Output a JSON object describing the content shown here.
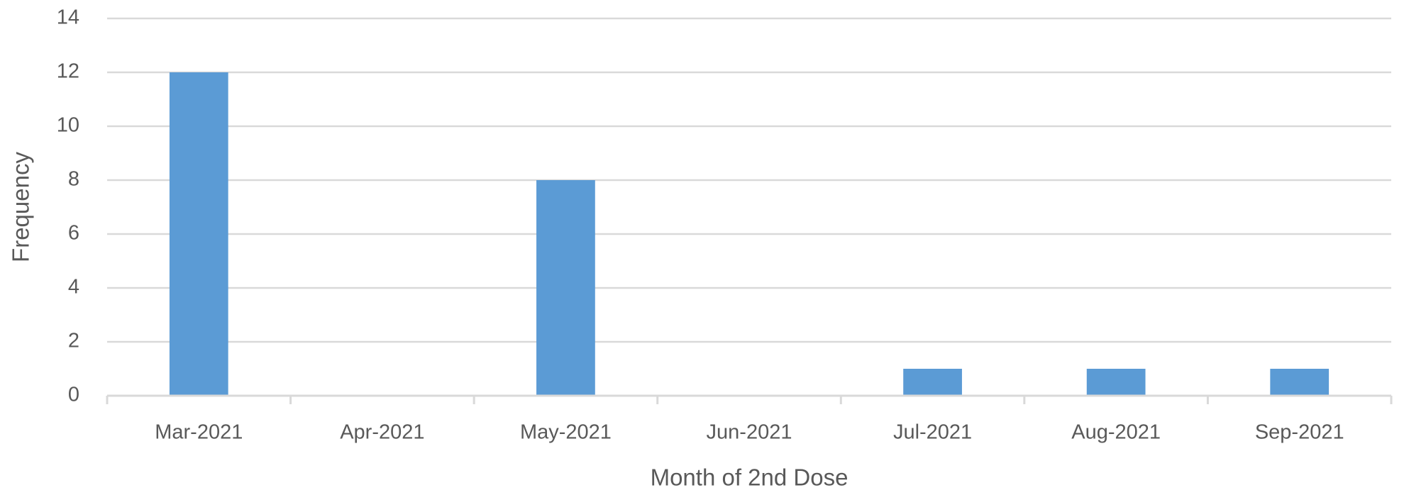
{
  "chart_data": {
    "type": "bar",
    "x_label": "Month of 2nd Dose",
    "y_label": "Frequency",
    "categories": [
      "Mar-2021",
      "Apr-2021",
      "May-2021",
      "Jun-2021",
      "Jul-2021",
      "Aug-2021",
      "Sep-2021"
    ],
    "values": [
      12,
      0,
      8,
      0,
      1,
      1,
      1
    ],
    "color": "#5b9bd5",
    "ylim": [
      0,
      14
    ],
    "yticks": [
      0,
      2,
      4,
      6,
      8,
      10,
      12,
      14
    ],
    "grid": true
  }
}
